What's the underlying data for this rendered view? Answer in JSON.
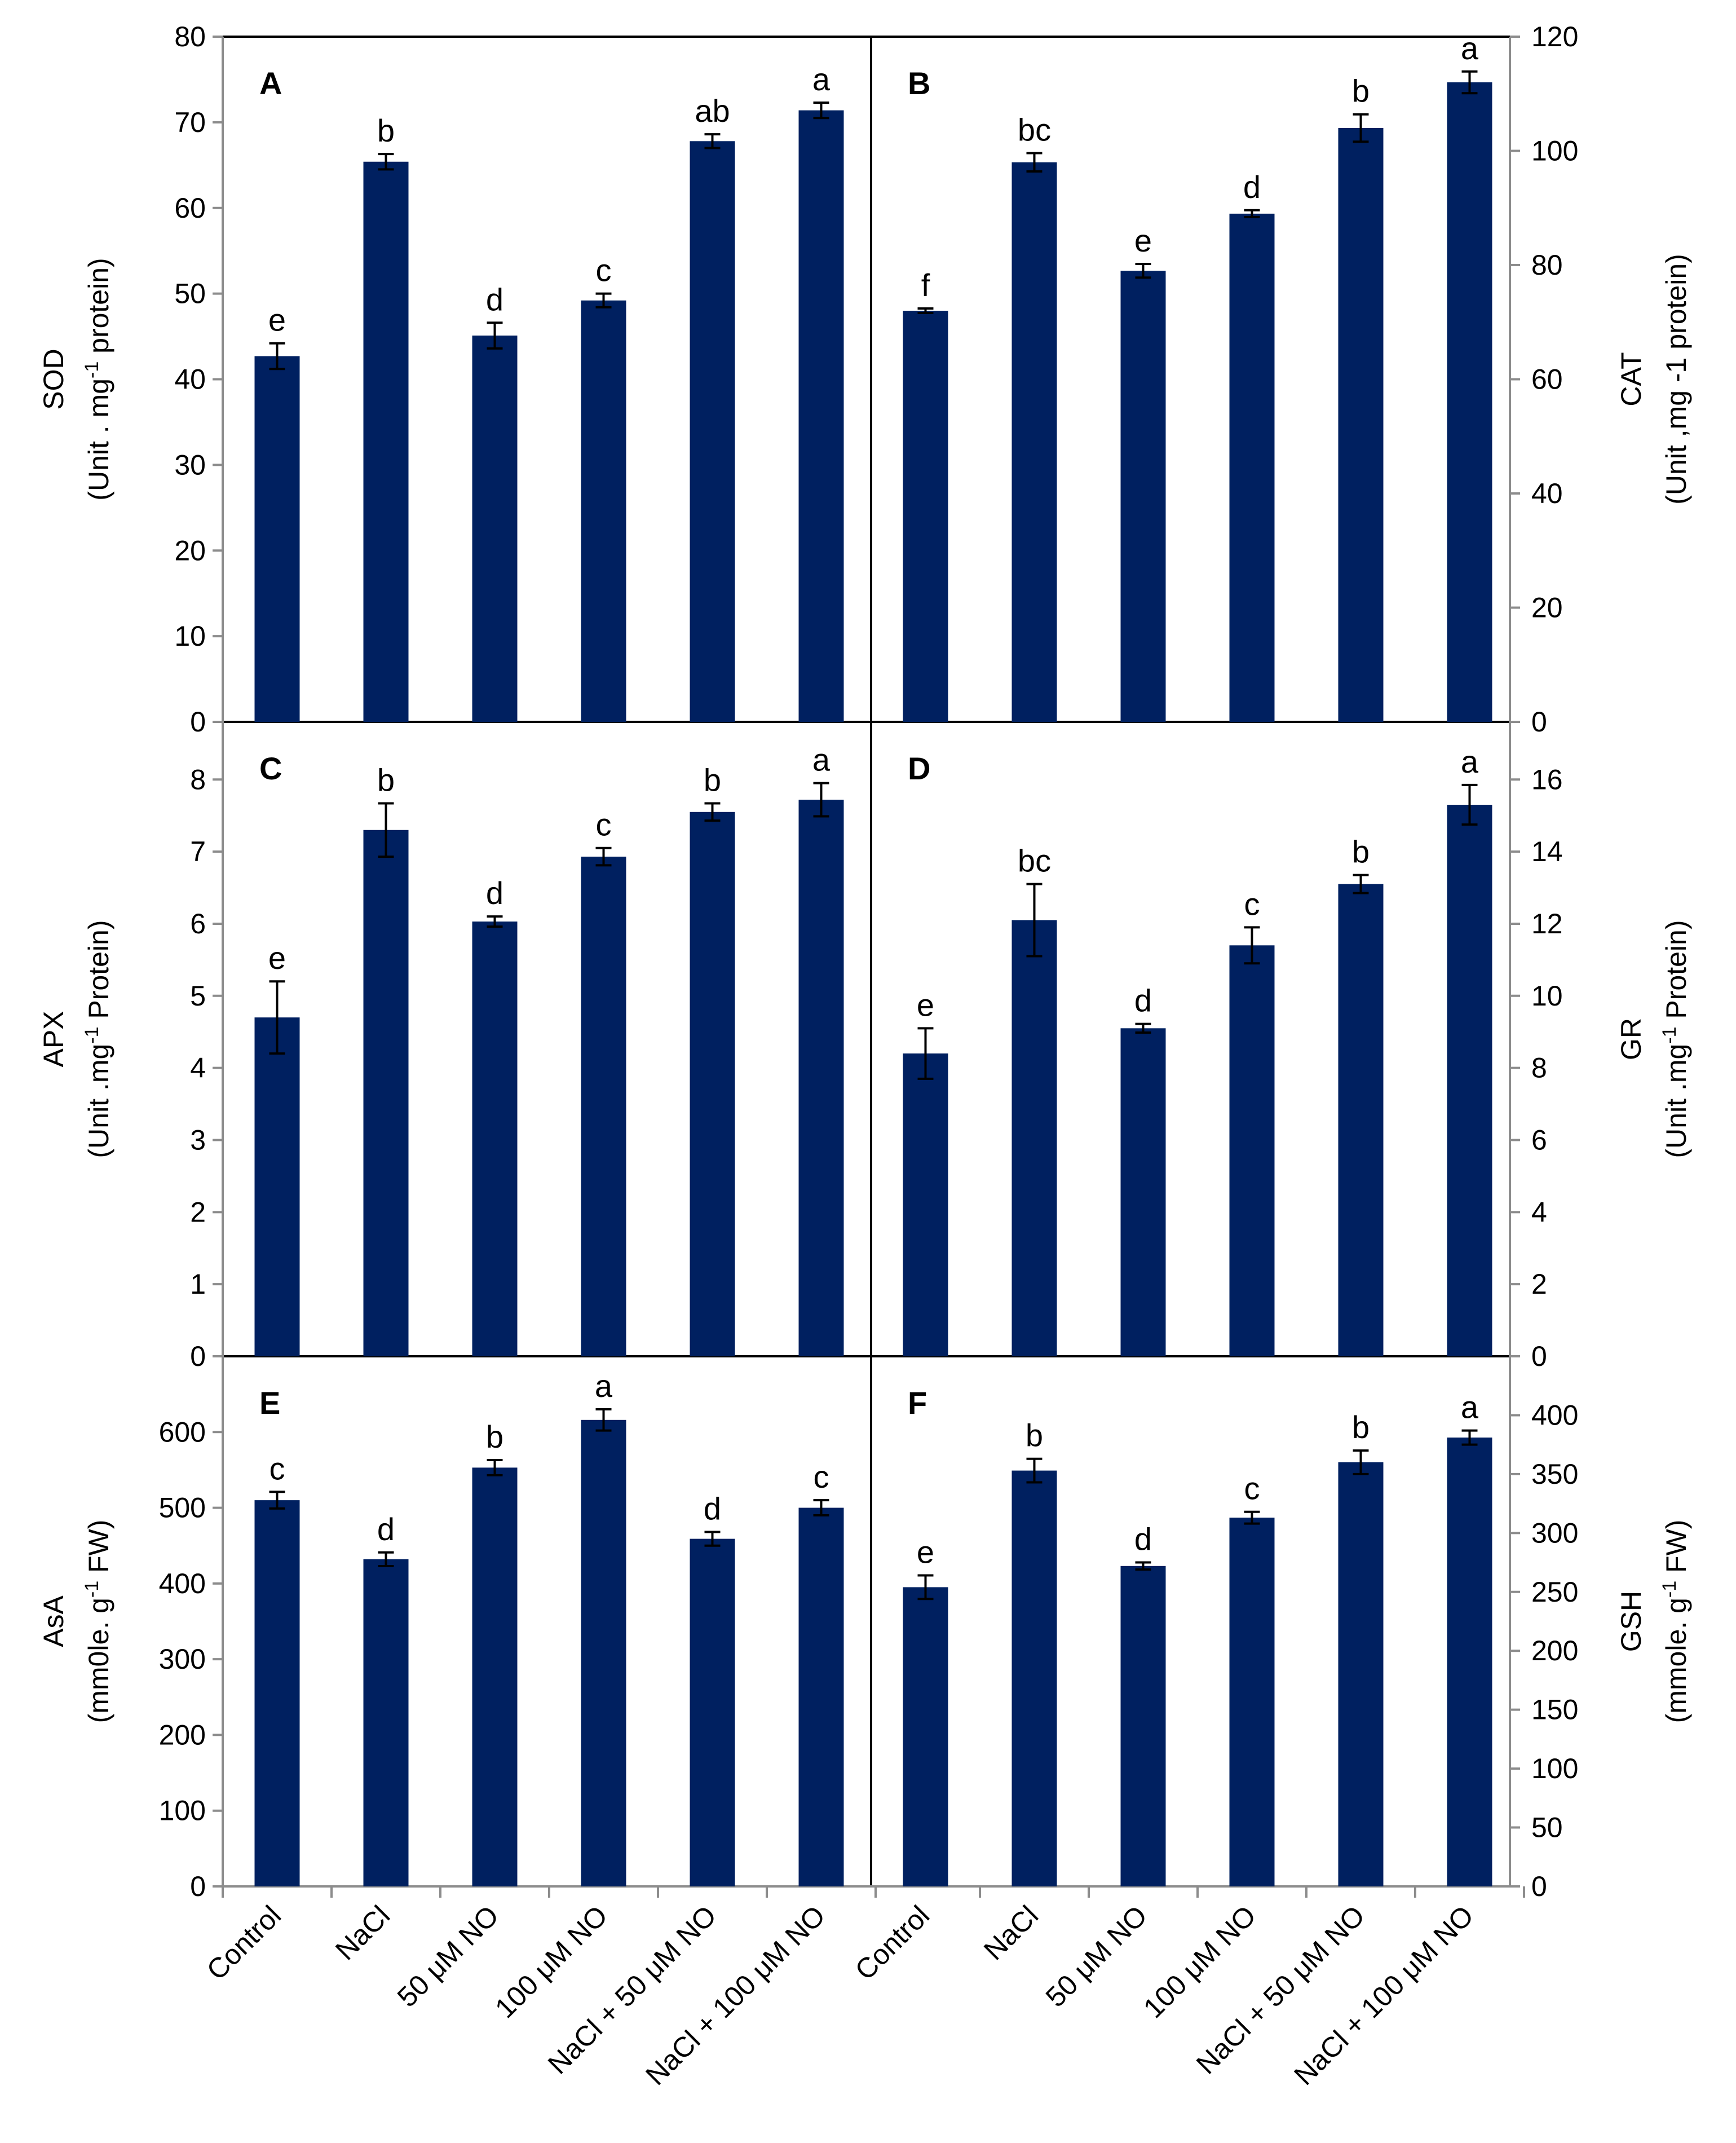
{
  "categories": [
    "Control",
    "NaCl",
    "50 μM NO",
    "100 μM NO",
    "NaCl + 50 μM NO",
    "NaCl + 100 μM NO"
  ],
  "bar_color": "#002060",
  "chart_data": [
    {
      "panel": "A",
      "type": "bar",
      "ylabel_line1": "SOD",
      "ylabel_line2_pre": "(Unit . mg",
      "ylabel_sup": "-1",
      "ylabel_line2_post": " protein)",
      "ylim": [
        0,
        80
      ],
      "ticks": [
        "0",
        "10",
        "20",
        "30",
        "40",
        "50",
        "60",
        "70",
        "80"
      ],
      "tick_values": [
        0,
        10,
        20,
        30,
        40,
        50,
        60,
        70,
        80
      ],
      "values": [
        42.7,
        65.4,
        45.1,
        49.2,
        67.8,
        71.4
      ],
      "errors": [
        1.5,
        0.9,
        1.5,
        0.8,
        0.8,
        0.9
      ],
      "letters": [
        "e",
        "b",
        "d",
        "c",
        "ab",
        "a"
      ]
    },
    {
      "panel": "B",
      "type": "bar",
      "ylabel_line1": "CAT",
      "ylabel_line2_pre": "(Unit ,mg -1 protein)",
      "ylabel_sup": "",
      "ylabel_line2_post": "",
      "ylim": [
        0,
        120
      ],
      "ticks": [
        "0",
        "20",
        "40",
        "60",
        "80",
        "100",
        "120"
      ],
      "tick_values": [
        0,
        20,
        40,
        60,
        80,
        100,
        120
      ],
      "values": [
        72.0,
        98.0,
        79.0,
        89.0,
        104.0,
        112.0
      ],
      "errors": [
        0.4,
        1.6,
        1.2,
        0.6,
        2.4,
        1.9
      ],
      "letters": [
        "f",
        "bc",
        "e",
        "d",
        "b",
        "a"
      ]
    },
    {
      "panel": "C",
      "type": "bar",
      "ylabel_line1": "APX",
      "ylabel_line2_pre": "(Unit .mg",
      "ylabel_sup": "-1",
      "ylabel_line2_post": " Protein)",
      "ylim": [
        0,
        8.8
      ],
      "ticks": [
        "0",
        "1",
        "2",
        "3",
        "4",
        "5",
        "6",
        "7",
        "8"
      ],
      "tick_values": [
        0,
        1,
        2,
        3,
        4,
        5,
        6,
        7,
        8
      ],
      "values": [
        4.7,
        7.3,
        6.03,
        6.93,
        7.55,
        7.72
      ],
      "errors": [
        0.5,
        0.37,
        0.07,
        0.12,
        0.12,
        0.23
      ],
      "letters": [
        "e",
        "b",
        "d",
        "c",
        "b",
        "a"
      ]
    },
    {
      "panel": "D",
      "type": "bar",
      "ylabel_line1": "GR",
      "ylabel_line2_pre": "(Unit .mg",
      "ylabel_sup": "-1",
      "ylabel_line2_post": " Protein)",
      "ylim": [
        0,
        17.6
      ],
      "ticks": [
        "0",
        "2",
        "4",
        "6",
        "8",
        "10",
        "12",
        "14",
        "16"
      ],
      "tick_values": [
        0,
        2,
        4,
        6,
        8,
        10,
        12,
        14,
        16
      ],
      "values": [
        8.4,
        12.1,
        9.1,
        11.4,
        13.1,
        15.3
      ],
      "errors": [
        0.7,
        1.0,
        0.12,
        0.5,
        0.25,
        0.55
      ],
      "letters": [
        "e",
        "bc",
        "d",
        "c",
        "b",
        "a"
      ]
    },
    {
      "panel": "E",
      "type": "bar",
      "ylabel_line1": "AsA",
      "ylabel_line2_pre": "(mm0le. g",
      "ylabel_sup": "-1",
      "ylabel_line2_post": " FW)",
      "ylim": [
        0,
        700
      ],
      "ticks": [
        "0",
        "100",
        "200",
        "300",
        "400",
        "500",
        "600"
      ],
      "tick_values": [
        0,
        100,
        200,
        300,
        400,
        500,
        600
      ],
      "values": [
        510,
        432,
        553,
        616,
        459,
        500
      ],
      "errors": [
        11,
        9,
        10,
        14,
        9,
        10
      ],
      "letters": [
        "c",
        "d",
        "b",
        "a",
        "d",
        "c"
      ]
    },
    {
      "panel": "F",
      "type": "bar",
      "ylabel_line1": "GSH",
      "ylabel_line2_pre": "(mmole. g",
      "ylabel_sup": "-1",
      "ylabel_line2_post": " FW)",
      "ylim": [
        0,
        450
      ],
      "ticks": [
        "0",
        "50",
        "100",
        "150",
        "200",
        "250",
        "300",
        "350",
        "400"
      ],
      "tick_values": [
        0,
        50,
        100,
        150,
        200,
        250,
        300,
        350,
        400
      ],
      "values": [
        254,
        353,
        272,
        313,
        360,
        381
      ],
      "errors": [
        10,
        10,
        3,
        5,
        10,
        6
      ],
      "letters": [
        "e",
        "b",
        "d",
        "c",
        "b",
        "a"
      ]
    }
  ]
}
